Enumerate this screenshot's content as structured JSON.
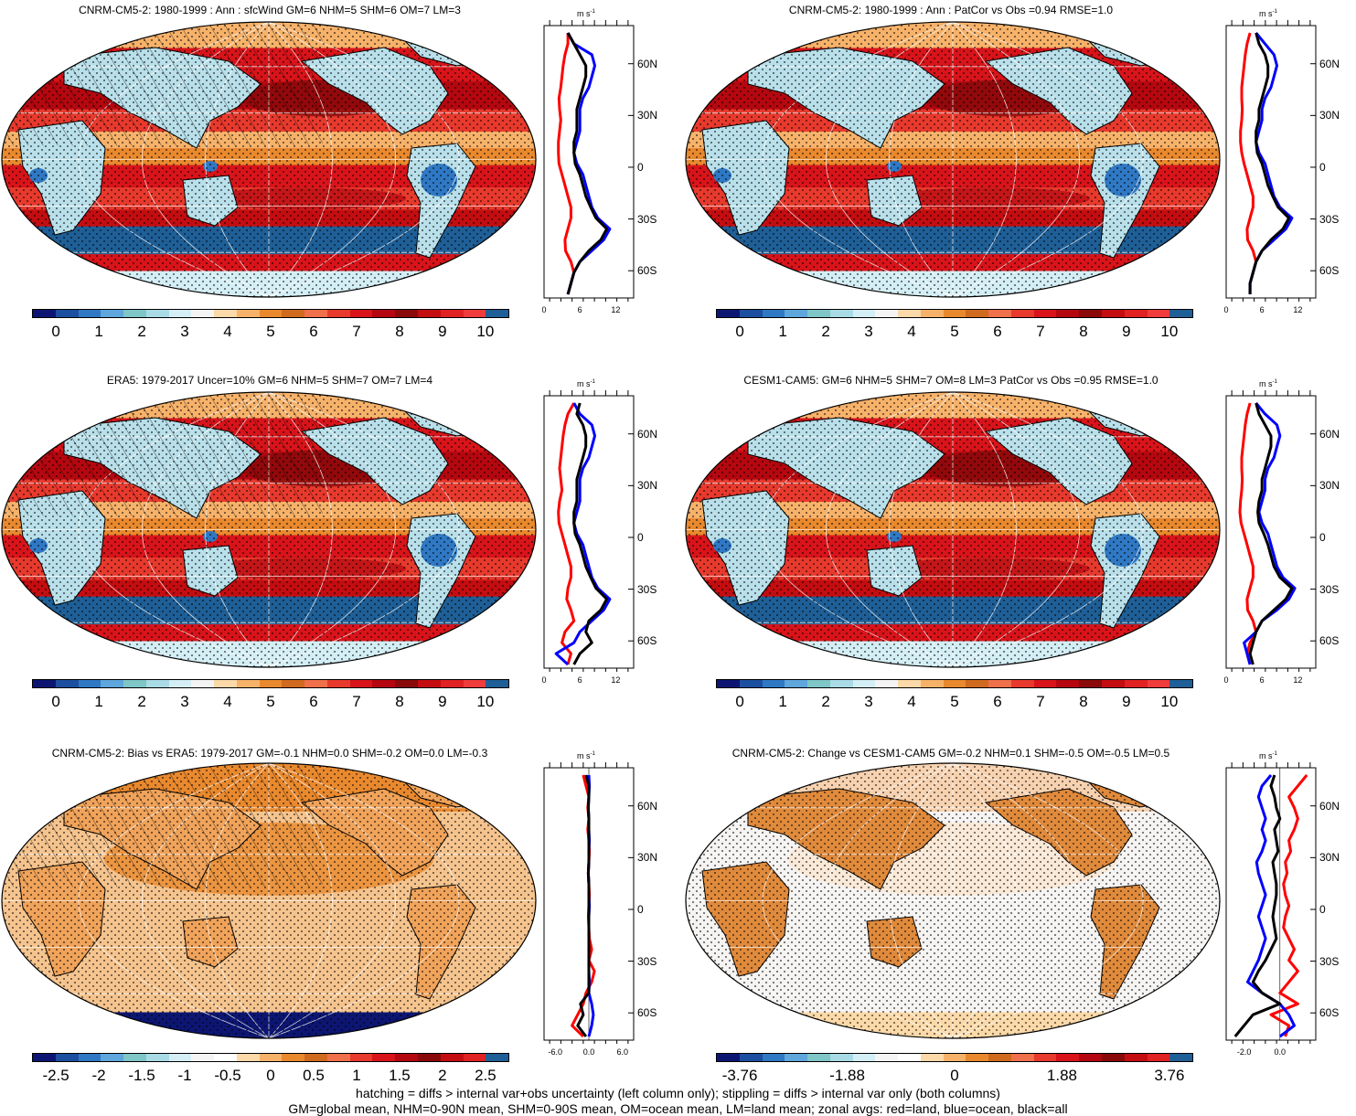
{
  "panels": [
    {
      "title": "CNRM-CM5-2: 1980-1999 : Ann : sfcWind GM=6 NHM=5 SHM=6 OM=7 LM=3",
      "scheme": "abs",
      "hatch": true,
      "zx": [
        "0",
        "6",
        "12"
      ],
      "zunit": "m s",
      "zmin": 0,
      "zmax": 15,
      "red": [
        4,
        4,
        3.5,
        3.2,
        3,
        2.8,
        2.5,
        2.6,
        2.8,
        2.6,
        2.4,
        2.4,
        2.5,
        3,
        3.5,
        4,
        4.5,
        4.5,
        4,
        3.5,
        3.6,
        4.5,
        5,
        4.5,
        4
      ],
      "blue": [
        4,
        5,
        8,
        8.5,
        8,
        7.5,
        6.5,
        6,
        6,
        6,
        5.5,
        5,
        5.5,
        6.5,
        7,
        7.5,
        8,
        9,
        11,
        10,
        8,
        6,
        5,
        4.5,
        4
      ],
      "black": [
        4,
        5,
        6,
        7,
        7,
        6.5,
        6,
        5.5,
        5.5,
        5.5,
        5,
        5,
        5.2,
        6,
        6.5,
        7,
        7.8,
        8.7,
        10.5,
        9.5,
        7.5,
        6,
        5,
        4.5,
        4
      ]
    },
    {
      "title": "CNRM-CM5-2: 1980-1999 : Ann : PatCor vs Obs =0.94 RMSE=1.0",
      "scheme": "abs",
      "hatch": false,
      "zx": [
        "0",
        "6",
        "12"
      ],
      "zunit": "m s",
      "zmin": 0,
      "zmax": 15,
      "red": [
        4,
        3.5,
        3.2,
        3,
        2.8,
        2.6,
        2.6,
        2.7,
        2.6,
        2.4,
        2.4,
        2.6,
        3,
        3.5,
        4,
        4.5,
        4.5,
        4,
        3.5,
        3.6,
        4.5,
        5,
        4.5,
        4,
        4
      ],
      "blue": [
        5,
        6.5,
        8,
        8.5,
        8,
        7.5,
        6.5,
        6,
        6,
        5.5,
        5,
        5.5,
        6.5,
        7,
        7.5,
        8,
        9,
        11,
        10,
        8,
        6,
        5,
        4.5,
        4,
        4
      ],
      "black": [
        5,
        5.5,
        6.5,
        7,
        7,
        6.5,
        6,
        5.5,
        5.5,
        5,
        5,
        5.2,
        6,
        6.5,
        7,
        7.8,
        8.7,
        10.5,
        9.5,
        7.5,
        6,
        5,
        4.5,
        4,
        4
      ]
    },
    {
      "title": "ERA5: 1979-2017 Uncer=10% GM=6 NHM=5 SHM=7 OM=7 LM=4",
      "scheme": "abs",
      "hatch": true,
      "zx": [
        "0",
        "6",
        "12"
      ],
      "zunit": "m s",
      "zmin": 0,
      "zmax": 15,
      "red": [
        5,
        4,
        3.5,
        3.2,
        3,
        2.8,
        2.6,
        2.8,
        3,
        2.6,
        2.4,
        2.5,
        3,
        3.5,
        4,
        4.5,
        4.5,
        4,
        3.8,
        4.5,
        5,
        3.5,
        3,
        4.5,
        4
      ],
      "blue": [
        5,
        6,
        8,
        8.5,
        8,
        7.5,
        6.5,
        6,
        6,
        6,
        5.5,
        5,
        5.5,
        6.5,
        7,
        7.5,
        8,
        9,
        11,
        10,
        8,
        6,
        5,
        2,
        4
      ],
      "black": [
        6,
        5.5,
        6.5,
        7,
        7,
        6.5,
        6,
        5.5,
        5.5,
        5.5,
        5,
        5,
        5.2,
        6,
        6.5,
        7,
        7.8,
        8.7,
        10.5,
        9.5,
        7.5,
        7,
        8,
        6,
        5
      ]
    },
    {
      "title": "CESM1-CAM5: GM=6 NHM=5 SHM=7 OM=8 LM=3 PatCor vs Obs =0.95 RMSE=1.0",
      "scheme": "abs",
      "hatch": false,
      "zx": [
        "0",
        "6",
        "12"
      ],
      "zunit": "m s",
      "zmin": 0,
      "zmax": 15,
      "red": [
        4,
        3.5,
        3.2,
        3,
        2.8,
        2.6,
        2.6,
        2.7,
        2.6,
        2.4,
        2.3,
        2.5,
        3,
        3.5,
        4,
        4.5,
        4.5,
        4,
        3.5,
        3.6,
        4.5,
        5,
        4,
        3.5,
        4
      ],
      "blue": [
        5,
        6.5,
        8.5,
        9,
        8.5,
        8,
        7,
        6.5,
        6.5,
        6,
        5.5,
        6,
        7,
        7.5,
        8,
        8.5,
        9.5,
        11.5,
        10.5,
        8.5,
        6,
        5,
        3,
        3.5,
        4
      ],
      "black": [
        5,
        5.5,
        6.5,
        7.5,
        7.5,
        7,
        6.5,
        6,
        6,
        5.5,
        5.3,
        5.5,
        6.3,
        7,
        7.5,
        8,
        9,
        11,
        10,
        8,
        6,
        5,
        4.5,
        4,
        4.5
      ]
    },
    {
      "title": "CNRM-CM5-2: Bias vs ERA5: 1979-2017 GM=-0.1 NHM=0.0 SHM=-0.2 OM=0.0 LM=-0.3",
      "scheme": "div",
      "hatch": true,
      "zx": [
        "-6.0",
        "0.0",
        "6.0"
      ],
      "zunit": "m s",
      "zmin": -8,
      "zmax": 8,
      "red": [
        -1,
        -0.5,
        0,
        -0.2,
        0,
        -0.2,
        0,
        0.1,
        0,
        -0.1,
        0,
        0.1,
        0,
        -0.1,
        0,
        0.1,
        0.5,
        0,
        1,
        0.5,
        -0.5,
        -1,
        -2,
        -3,
        -1
      ],
      "blue": [
        0,
        0.1,
        0,
        -0.1,
        0,
        0,
        0.1,
        0,
        0,
        -0.1,
        0,
        0,
        0.1,
        0,
        0,
        0,
        0,
        0,
        0,
        0.1,
        0,
        0.5,
        0.8,
        0.5,
        0
      ],
      "black": [
        -0.5,
        0,
        0,
        -0.1,
        0,
        0,
        0,
        0,
        0,
        -0.1,
        0,
        0,
        0,
        0,
        0,
        0,
        0,
        0,
        0,
        0,
        0,
        -1.5,
        -1,
        -2,
        -0.5
      ]
    },
    {
      "title": "CNRM-CM5-2: Change vs CESM1-CAM5 GM=-0.2 NHM=0.1 SHM=-0.5 OM=-0.5 LM=0.5",
      "scheme": "div",
      "hatch": false,
      "zx": [
        "-2.0",
        "0.0"
      ],
      "zunit": "m s",
      "zmin": -3,
      "zmax": 2,
      "red": [
        1.5,
        1,
        0.5,
        0.8,
        1,
        0.8,
        0.5,
        0.6,
        0.3,
        0.4,
        0.2,
        0.3,
        0.5,
        0.3,
        0.2,
        0.5,
        0.8,
        0.5,
        1,
        0.5,
        0,
        1,
        -0.5,
        0.5,
        0.3
      ],
      "blue": [
        -0.5,
        -1,
        -1.2,
        -1,
        -0.8,
        -1,
        -0.8,
        -1,
        -1.3,
        -1.2,
        -1,
        -0.8,
        -1,
        -1.2,
        -1,
        -0.8,
        -1,
        -1.2,
        -1.5,
        -1.8,
        -1,
        0,
        0.5,
        0.8,
        0
      ],
      "black": [
        -0.3,
        -0.5,
        -0.3,
        -0.2,
        0,
        -0.3,
        -0.2,
        -0.1,
        -0.4,
        -0.3,
        -0.2,
        -0.2,
        -0.3,
        -0.4,
        -0.3,
        -0.2,
        -0.5,
        -0.8,
        -1.2,
        -1.5,
        -1,
        0,
        -1.5,
        -2,
        -2.5
      ]
    }
  ],
  "colorbars": {
    "abs": {
      "labels": [
        "0",
        "1",
        "2",
        "3",
        "4",
        "5",
        "6",
        "7",
        "8",
        "9",
        "10"
      ]
    },
    "div": {
      "labels": [
        "-2.5",
        "-2",
        "-1.5",
        "-1",
        "-0.5",
        "0",
        "0.5",
        "1",
        "1.5",
        "2",
        "2.5"
      ]
    },
    "change": {
      "labels": [
        "-3.76",
        "-1.88",
        "0",
        "1.88",
        "3.76"
      ]
    }
  },
  "lat_labels": [
    "60N",
    "30N",
    "0",
    "30S",
    "60S"
  ],
  "footer": {
    "line1": "hatching = diffs > internal var+obs uncertainty (left column only); stippling = diffs > internal var only (both columns)",
    "line2": "GM=global mean, NHM=0-90N mean, SHM=0-90S mean, OM=ocean mean, LM=land mean; zonal avgs: red=land, blue=ocean, black=all"
  },
  "colors": {
    "abs": [
      "#0c1672",
      "#1d4fa0",
      "#2f78c4",
      "#5fa6dd",
      "#7fc6c6",
      "#a9dbe6",
      "#d4eef5",
      "#f4f4f4",
      "#fbd9a8",
      "#f7b26a",
      "#e9892e",
      "#d06a1e",
      "#f0704c",
      "#e8392d",
      "#d8141a",
      "#b5070f",
      "#8a0a0a",
      "#c40d10",
      "#e02222",
      "#f03c3c",
      "#1f5f97"
    ],
    "div": [
      "#0c1672",
      "#1d4fa0",
      "#2f78c4",
      "#5fa6dd",
      "#7fc6c6",
      "#a9dbe6",
      "#d4eef5",
      "#f4f4f4",
      "#ffffff",
      "#fbd9a8",
      "#f7b26a",
      "#e9892e",
      "#d06a1e",
      "#f0704c",
      "#e8392d",
      "#d8141a",
      "#b5070f",
      "#8a0a0a",
      "#c40d10",
      "#e02222",
      "#1f5f97"
    ]
  }
}
